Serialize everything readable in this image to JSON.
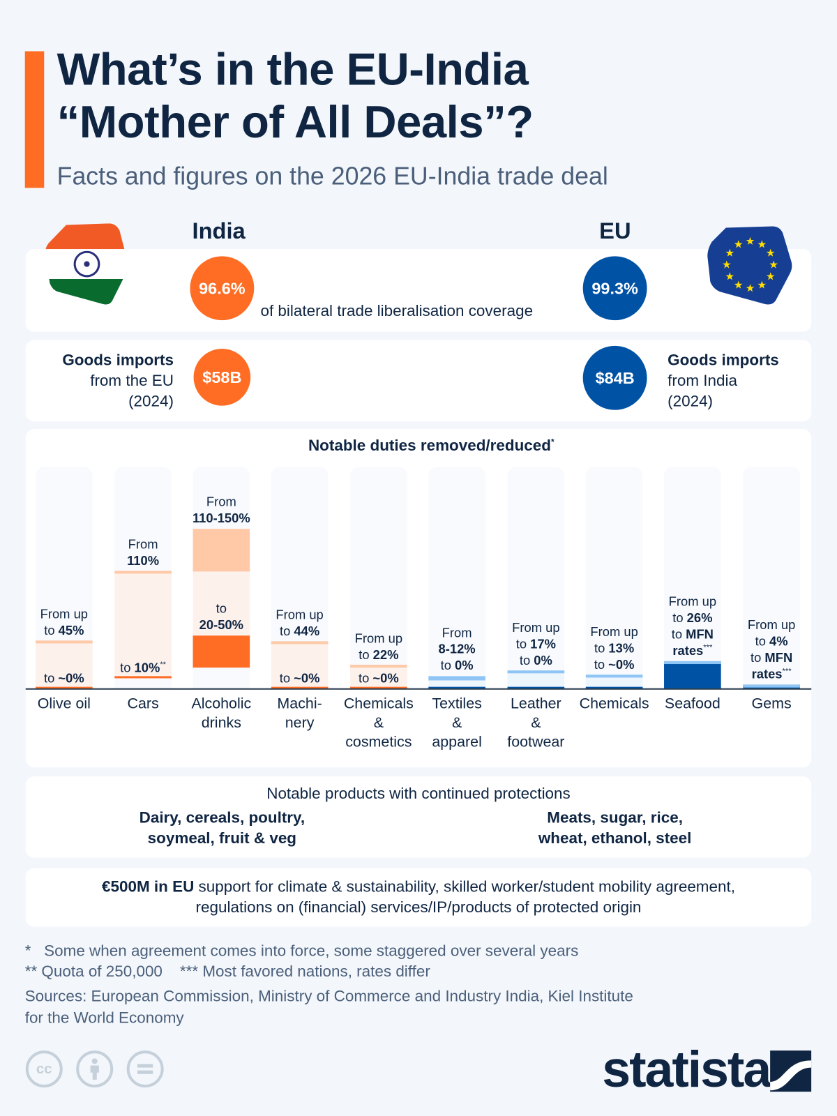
{
  "header": {
    "title_line1": "What’s in the EU-India",
    "title_line2": "“Mother of All Deals”?",
    "subtitle": "Facts and figures on the 2026 EU-India trade deal"
  },
  "colors": {
    "india": "#ff6d24",
    "eu": "#0052a5",
    "navy": "#0f2542"
  },
  "coverage": {
    "india_label": "India",
    "eu_label": "EU",
    "india_value": "96.6%",
    "eu_value": "99.3%",
    "caption": "of bilateral trade liberalisation coverage"
  },
  "imports": {
    "india_title": "Goods imports",
    "india_line2": "from the EU",
    "india_line3": "(2024)",
    "india_value": "$58B",
    "eu_title": "Goods imports",
    "eu_line2": "from India",
    "eu_line3": "(2024)",
    "eu_value": "$84B"
  },
  "chart_data": {
    "type": "bar",
    "title": "Notable duties removed/reduced",
    "title_mark": "*",
    "unit": "%",
    "ylim": [
      0,
      205
    ],
    "items": [
      {
        "category": [
          "Olive oil"
        ],
        "side": "india",
        "from": [
          45,
          45
        ],
        "to": [
          0,
          0
        ],
        "top_label": [
          [
            [
              "From up",
              "n"
            ]
          ],
          [
            [
              "to ",
              "n"
            ],
            [
              "45%",
              "b"
            ]
          ]
        ],
        "bottom_label": [
          [
            [
              "to ",
              "n"
            ],
            [
              "~0%",
              "b"
            ]
          ]
        ]
      },
      {
        "category": [
          "Cars"
        ],
        "side": "india",
        "from": [
          110,
          110
        ],
        "to": [
          10,
          10
        ],
        "top_label": [
          [
            [
              "From",
              "n"
            ]
          ],
          [
            [
              "110%",
              "b"
            ]
          ]
        ],
        "bottom_label": [
          [
            [
              "to ",
              "n"
            ],
            [
              "10%",
              "b"
            ],
            [
              "**",
              "sup"
            ]
          ]
        ]
      },
      {
        "category": [
          "Alcoholic",
          "drinks"
        ],
        "side": "india",
        "from": [
          110,
          150
        ],
        "to": [
          20,
          50
        ],
        "top_label": [
          [
            [
              "From",
              "n"
            ]
          ],
          [
            [
              "110-150%",
              "b"
            ]
          ]
        ],
        "bottom_label": [
          [
            [
              "to",
              "n"
            ]
          ],
          [
            [
              "20-50%",
              "b"
            ]
          ]
        ]
      },
      {
        "category": [
          "Machi-",
          "nery"
        ],
        "side": "india",
        "from": [
          44,
          44
        ],
        "to": [
          0,
          0
        ],
        "top_label": [
          [
            [
              "From up",
              "n"
            ]
          ],
          [
            [
              "to ",
              "n"
            ],
            [
              "44%",
              "b"
            ]
          ]
        ],
        "bottom_label": [
          [
            [
              "to ",
              "n"
            ],
            [
              "~0%",
              "b"
            ]
          ]
        ]
      },
      {
        "category": [
          "Chemicals",
          "&",
          "cosmetics"
        ],
        "side": "india",
        "from": [
          22,
          22
        ],
        "to": [
          0,
          0
        ],
        "top_label": [
          [
            [
              "From up",
              "n"
            ]
          ],
          [
            [
              "to ",
              "n"
            ],
            [
              "22%",
              "b"
            ]
          ]
        ],
        "bottom_label": [
          [
            [
              "to ",
              "n"
            ],
            [
              "~0%",
              "b"
            ]
          ]
        ]
      },
      {
        "category": [
          "Textiles",
          "&",
          "apparel"
        ],
        "side": "eu",
        "from": [
          8,
          12
        ],
        "to": [
          0,
          0
        ],
        "top_label": [
          [
            [
              "From",
              "n"
            ]
          ],
          [
            [
              "8-12%",
              "b"
            ]
          ],
          [
            [
              "to ",
              "n"
            ],
            [
              "0%",
              "b"
            ]
          ]
        ]
      },
      {
        "category": [
          "Leather",
          "&",
          "footwear"
        ],
        "side": "eu",
        "from": [
          17,
          17
        ],
        "to": [
          0,
          0
        ],
        "top_label": [
          [
            [
              "From up",
              "n"
            ]
          ],
          [
            [
              "to ",
              "n"
            ],
            [
              "17%",
              "b"
            ]
          ],
          [
            [
              "to ",
              "n"
            ],
            [
              "0%",
              "b"
            ]
          ]
        ]
      },
      {
        "category": [
          "Chemicals"
        ],
        "side": "eu",
        "from": [
          13,
          13
        ],
        "to": [
          0,
          0
        ],
        "top_label": [
          [
            [
              "From up",
              "n"
            ]
          ],
          [
            [
              "to ",
              "n"
            ],
            [
              "13%",
              "b"
            ]
          ],
          [
            [
              "to ",
              "n"
            ],
            [
              "~0%",
              "b"
            ]
          ]
        ]
      },
      {
        "category": [
          "Seafood"
        ],
        "side": "eu",
        "from": [
          26,
          26
        ],
        "to": [
          26,
          26
        ],
        "to_text": "MFN rates",
        "top_label": [
          [
            [
              "From up",
              "n"
            ]
          ],
          [
            [
              "to ",
              "n"
            ],
            [
              "26%",
              "b"
            ]
          ],
          [
            [
              "to ",
              "n"
            ],
            [
              "MFN",
              "b"
            ]
          ],
          [
            [
              "rates",
              "b"
            ],
            [
              "***",
              "sup"
            ]
          ]
        ]
      },
      {
        "category": [
          "Gems"
        ],
        "side": "eu",
        "from": [
          4,
          4
        ],
        "to": [
          4,
          4
        ],
        "to_text": "MFN rates",
        "top_label": [
          [
            [
              "From up",
              "n"
            ]
          ],
          [
            [
              "to ",
              "n"
            ],
            [
              "4%",
              "b"
            ]
          ],
          [
            [
              "to ",
              "n"
            ],
            [
              "MFN",
              "b"
            ]
          ],
          [
            [
              "rates",
              "b"
            ],
            [
              "***",
              "sup"
            ]
          ]
        ]
      }
    ]
  },
  "protections": {
    "title": "Notable products with continued protections",
    "india_line1": "Dairy, cereals, poultry,",
    "india_line2": "soymeal, fruit & veg",
    "eu_line1": "Meats, sugar, rice,",
    "eu_line2": "wheat, ethanol, steel"
  },
  "support": {
    "bold": "€500M in EU",
    "rest": " support for climate & sustainability, skilled worker/student mobility agreement,",
    "line2": "regulations on (financial) services/IP/products of protected origin"
  },
  "footnotes": {
    "n1": "*   Some when agreement comes into force, some staggered over several years",
    "n2": "** Quota of 250,000    *** Most favored nations, rates differ",
    "sources1": "Sources: European Commission, Ministry of Commerce and Industry India, Kiel Institute",
    "sources2": "for the World Economy"
  },
  "branding": {
    "logo": "statista",
    "license_icons": [
      "cc-icon",
      "by-icon",
      "nd-icon"
    ]
  }
}
